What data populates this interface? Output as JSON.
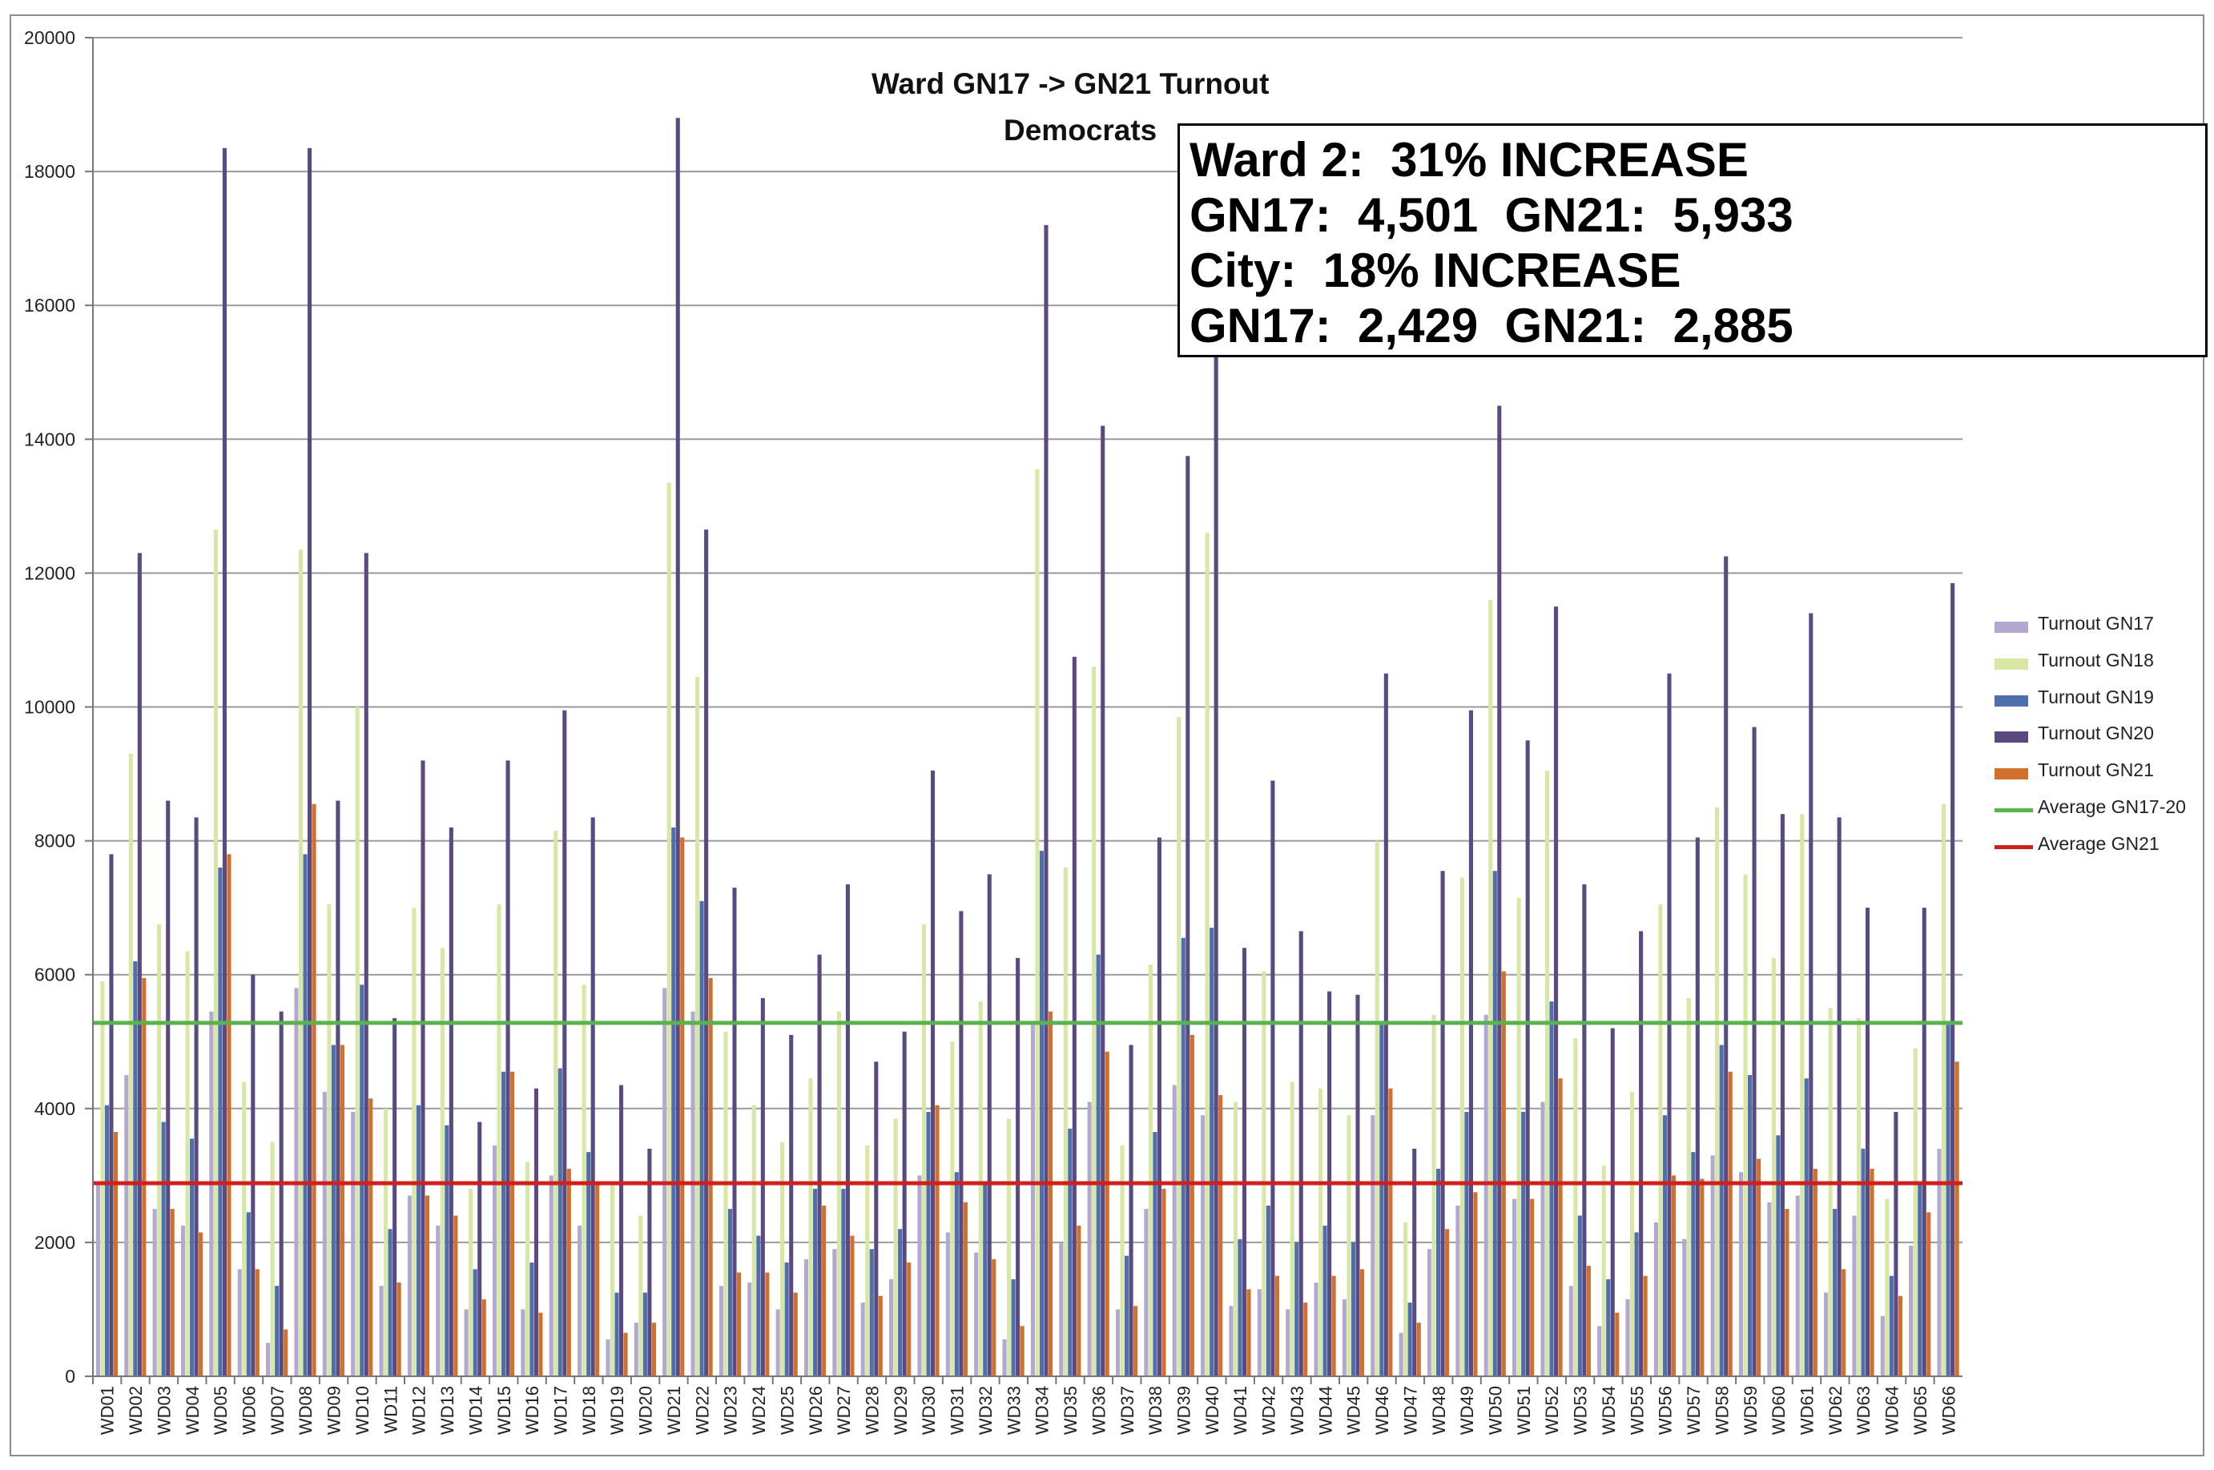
{
  "chart_data": {
    "type": "bar",
    "title": "Ward GN17 -> GN21 Turnout",
    "subtitle": "Democrats",
    "ylim": [
      0,
      20000
    ],
    "yticks": [
      0,
      2000,
      4000,
      6000,
      8000,
      10000,
      12000,
      14000,
      16000,
      18000,
      20000
    ],
    "categories": [
      "WD01",
      "WD02",
      "WD03",
      "WD04",
      "WD05",
      "WD06",
      "WD07",
      "WD08",
      "WD09",
      "WD10",
      "WD11",
      "WD12",
      "WD13",
      "WD14",
      "WD15",
      "WD16",
      "WD17",
      "WD18",
      "WD19",
      "WD20",
      "WD21",
      "WD22",
      "WD23",
      "WD24",
      "WD25",
      "WD26",
      "WD27",
      "WD28",
      "WD29",
      "WD30",
      "WD31",
      "WD32",
      "WD33",
      "WD34",
      "WD35",
      "WD36",
      "WD37",
      "WD38",
      "WD39",
      "WD40",
      "WD41",
      "WD42",
      "WD43",
      "WD44",
      "WD45",
      "WD46",
      "WD47",
      "WD48",
      "WD49",
      "WD50",
      "WD51",
      "WD52",
      "WD53",
      "WD54",
      "WD55",
      "WD56",
      "WD57",
      "WD58",
      "WD59",
      "WD60",
      "WD61",
      "WD62",
      "WD63",
      "WD64",
      "WD65",
      "WD66"
    ],
    "series": [
      {
        "name": "Turnout GN17",
        "color": "#b2a8d0",
        "values": [
          2900,
          4500,
          2500,
          2250,
          5450,
          1600,
          500,
          5800,
          4250,
          3950,
          1350,
          2700,
          2250,
          1000,
          3450,
          1000,
          3000,
          2250,
          550,
          800,
          5800,
          5450,
          1350,
          1400,
          1000,
          1750,
          1900,
          1100,
          1450,
          3000,
          2150,
          1850,
          550,
          5250,
          2000,
          4100,
          1000,
          2500,
          4350,
          3900,
          1050,
          1300,
          1000,
          1400,
          1150,
          3900,
          650,
          1900,
          2550,
          5400,
          2650,
          4100,
          1350,
          750,
          1150,
          2300,
          2050,
          3300,
          3050,
          2600,
          2700,
          1250,
          2400,
          900,
          1950,
          3400
        ]
      },
      {
        "name": "Turnout GN18",
        "color": "#d8e7a6",
        "values": [
          5900,
          9300,
          6750,
          6350,
          12650,
          4400,
          3500,
          12350,
          7050,
          10000,
          4000,
          7000,
          6400,
          2800,
          7050,
          3200,
          8150,
          5850,
          2900,
          2400,
          13350,
          10450,
          5150,
          4050,
          3500,
          4450,
          5450,
          3450,
          3850,
          6750,
          5000,
          5600,
          3850,
          13550,
          7600,
          10600,
          3450,
          6150,
          9850,
          12600,
          4100,
          6050,
          4400,
          4300,
          3900,
          8000,
          2300,
          5400,
          7450,
          11600,
          7150,
          9050,
          5050,
          3150,
          4250,
          7050,
          5650,
          8500,
          7500,
          6250,
          8400,
          5500,
          5350,
          2650,
          4900,
          8550
        ]
      },
      {
        "name": "Turnout GN19",
        "color": "#4e6eac",
        "values": [
          4050,
          6200,
          3800,
          3550,
          7600,
          2450,
          1350,
          7800,
          4950,
          5850,
          2200,
          4050,
          3750,
          1600,
          4550,
          1700,
          4600,
          3350,
          1250,
          1250,
          8200,
          7100,
          2500,
          2100,
          1700,
          2800,
          2800,
          1900,
          2200,
          3950,
          3050,
          2900,
          1450,
          7850,
          3700,
          6300,
          1800,
          3650,
          6550,
          6700,
          2050,
          2550,
          2000,
          2250,
          2000,
          5250,
          1100,
          3100,
          3950,
          7550,
          3950,
          5600,
          2400,
          1450,
          2150,
          3900,
          3350,
          4950,
          4500,
          3600,
          4450,
          2500,
          3400,
          1500,
          2900,
          5250
        ]
      },
      {
        "name": "Turnout GN20",
        "color": "#5b4a80",
        "values": [
          7800,
          12300,
          8600,
          8350,
          18350,
          6000,
          5450,
          18350,
          8600,
          12300,
          5350,
          9200,
          8200,
          3800,
          9200,
          4300,
          9950,
          8350,
          4350,
          3400,
          18800,
          12650,
          7300,
          5650,
          5100,
          6300,
          7350,
          4700,
          5150,
          9050,
          6950,
          7500,
          6250,
          17200,
          10750,
          14200,
          4950,
          8050,
          13750,
          16000,
          6400,
          8900,
          6650,
          5750,
          5700,
          10500,
          3400,
          7550,
          9950,
          14500,
          9500,
          11500,
          7350,
          5200,
          6650,
          10500,
          8050,
          12250,
          9700,
          8400,
          11400,
          8350,
          7000,
          3950,
          7000,
          11850
        ]
      },
      {
        "name": "Turnout GN21",
        "color": "#d16f2b",
        "values": [
          3650,
          5950,
          2500,
          2150,
          7800,
          1600,
          700,
          8550,
          4950,
          4150,
          1400,
          2700,
          2400,
          1150,
          4550,
          950,
          3100,
          2900,
          650,
          800,
          8050,
          5950,
          1550,
          1550,
          1250,
          2550,
          2100,
          1200,
          1700,
          4050,
          2600,
          1750,
          750,
          5450,
          2250,
          4850,
          1050,
          2800,
          5100,
          4200,
          1300,
          1500,
          1100,
          1500,
          1600,
          4300,
          800,
          2200,
          2750,
          6050,
          2650,
          4450,
          1650,
          950,
          1500,
          3000,
          2950,
          4550,
          3250,
          2500,
          3100,
          1600,
          3100,
          1200,
          2450,
          4700
        ]
      }
    ],
    "reference_lines": [
      {
        "name": "Average GN17-20",
        "value": 5280,
        "color": "#5ab24e"
      },
      {
        "name": "Average GN21",
        "value": 2885,
        "color": "#d01f1f"
      }
    ],
    "legend": {
      "placement": "right",
      "entries": [
        "Turnout GN17",
        "Turnout GN18",
        "Turnout GN19",
        "Turnout GN20",
        "Turnout GN21",
        "Average GN17-20",
        "Average GN21"
      ]
    },
    "annotation": {
      "lines": [
        "Ward 2:  31% INCREASE",
        "GN17:  4,501  GN21:  5,933",
        "City:  18% INCREASE",
        "GN17:  2,429  GN21:  2,885"
      ]
    }
  }
}
